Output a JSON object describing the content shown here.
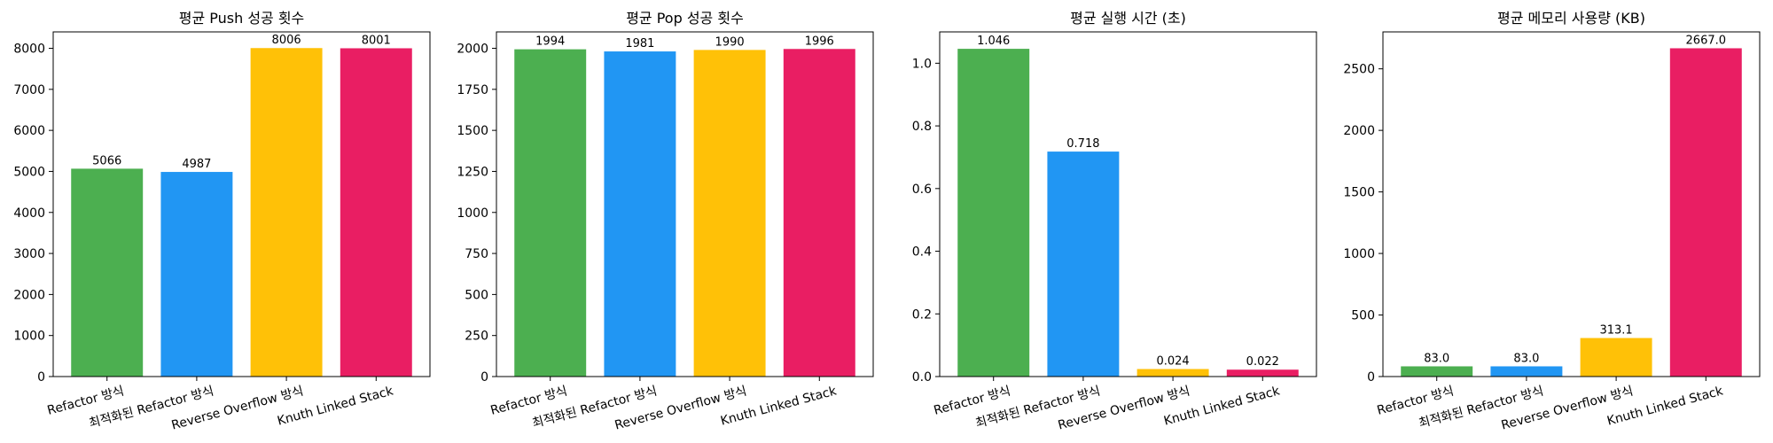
{
  "chart_data": [
    {
      "type": "bar",
      "title": "평균 Push 성공 횟수",
      "categories": [
        "Refactor 방식",
        "최적화된 Refactor 방식",
        "Reverse Overflow 방식",
        "Knuth Linked Stack"
      ],
      "values": [
        5066,
        4987,
        8006,
        8001
      ],
      "value_labels": [
        "5066",
        "4987",
        "8006",
        "8001"
      ],
      "colors": [
        "#4caf50",
        "#2196f3",
        "#ffc107",
        "#e91e63"
      ],
      "ylim": [
        0,
        8400
      ],
      "yticks": [
        0,
        1000,
        2000,
        3000,
        4000,
        5000,
        6000,
        7000,
        8000
      ],
      "ytick_labels": [
        "0",
        "1000",
        "2000",
        "3000",
        "4000",
        "5000",
        "6000",
        "7000",
        "8000"
      ],
      "grid": false
    },
    {
      "type": "bar",
      "title": "평균 Pop 성공 횟수",
      "categories": [
        "Refactor 방식",
        "최적화된 Refactor 방식",
        "Reverse Overflow 방식",
        "Knuth Linked Stack"
      ],
      "values": [
        1994,
        1981,
        1990,
        1996
      ],
      "value_labels": [
        "1994",
        "1981",
        "1990",
        "1996"
      ],
      "colors": [
        "#4caf50",
        "#2196f3",
        "#ffc107",
        "#e91e63"
      ],
      "ylim": [
        0,
        2100
      ],
      "yticks": [
        0,
        250,
        500,
        750,
        1000,
        1250,
        1500,
        1750,
        2000
      ],
      "ytick_labels": [
        "0",
        "250",
        "500",
        "750",
        "1000",
        "1250",
        "1500",
        "1750",
        "2000"
      ],
      "grid": false
    },
    {
      "type": "bar",
      "title": "평균 실행 시간 (초)",
      "categories": [
        "Refactor 방식",
        "최적화된 Refactor 방식",
        "Reverse Overflow 방식",
        "Knuth Linked Stack"
      ],
      "values": [
        1.046,
        0.718,
        0.024,
        0.022
      ],
      "value_labels": [
        "1.046",
        "0.718",
        "0.024",
        "0.022"
      ],
      "colors": [
        "#4caf50",
        "#2196f3",
        "#ffc107",
        "#e91e63"
      ],
      "ylim": [
        0,
        1.1
      ],
      "yticks": [
        0,
        0.2,
        0.4,
        0.6,
        0.8,
        1.0
      ],
      "ytick_labels": [
        "0.0",
        "0.2",
        "0.4",
        "0.6",
        "0.8",
        "1.0"
      ],
      "grid": false
    },
    {
      "type": "bar",
      "title": "평균 메모리 사용량 (KB)",
      "categories": [
        "Refactor 방식",
        "최적화된 Refactor 방식",
        "Reverse Overflow 방식",
        "Knuth Linked Stack"
      ],
      "values": [
        83.0,
        83.0,
        313.1,
        2667.0
      ],
      "value_labels": [
        "83.0",
        "83.0",
        "313.1",
        "2667.0"
      ],
      "colors": [
        "#4caf50",
        "#2196f3",
        "#ffc107",
        "#e91e63"
      ],
      "ylim": [
        0,
        2800
      ],
      "yticks": [
        0,
        500,
        1000,
        1500,
        2000,
        2500
      ],
      "ytick_labels": [
        "0",
        "500",
        "1000",
        "1500",
        "2000",
        "2500"
      ],
      "grid": false
    }
  ]
}
